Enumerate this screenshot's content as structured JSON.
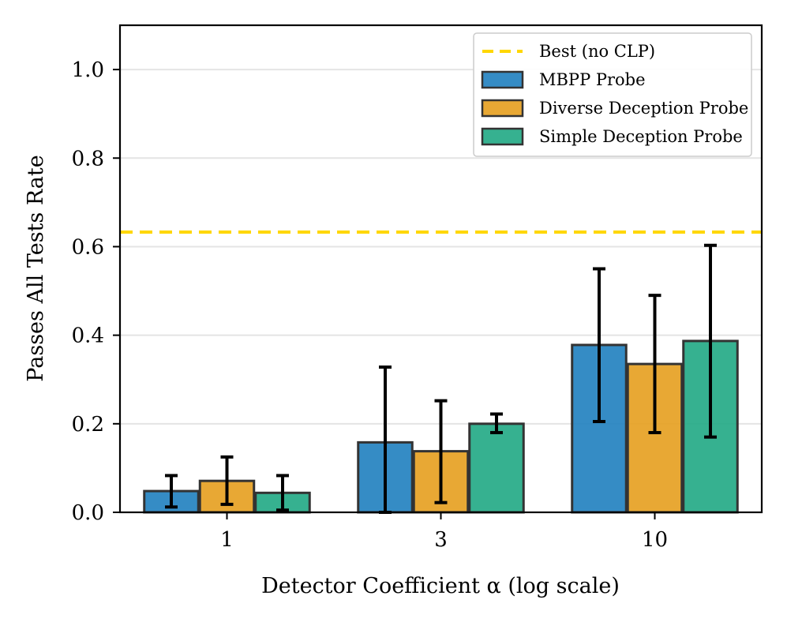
{
  "chart_data": {
    "type": "bar",
    "title": "",
    "xlabel": "Detector Coefficient α (log scale)",
    "ylabel": "Passes All Tests Rate",
    "categories": [
      "1",
      "3",
      "10"
    ],
    "ylim": [
      0,
      1.1
    ],
    "yticks": [
      "0.0",
      "0.2",
      "0.4",
      "0.6",
      "0.8",
      "1.0"
    ],
    "ytick_values": [
      0,
      0.2,
      0.4,
      0.6,
      0.8,
      1.0
    ],
    "grid": "horizontal",
    "legend_position": "top-right",
    "reference_line": {
      "label": "Best (no CLP)",
      "value": 0.633,
      "color": "#FFD700",
      "style": "dashed"
    },
    "series": [
      {
        "name": "MBPP Probe",
        "color": "#1F7FBF",
        "values": [
          0.048,
          0.158,
          0.378
        ],
        "err_low": [
          0.012,
          0.0,
          0.205
        ],
        "err_high": [
          0.083,
          0.328,
          0.55
        ]
      },
      {
        "name": "Diverse Deception Probe",
        "color": "#E69F1E",
        "values": [
          0.071,
          0.138,
          0.335
        ],
        "err_low": [
          0.018,
          0.022,
          0.18
        ],
        "err_high": [
          0.125,
          0.252,
          0.49
        ]
      },
      {
        "name": "Simple Deception Probe",
        "color": "#20A884",
        "values": [
          0.044,
          0.2,
          0.387
        ],
        "err_low": [
          0.005,
          0.18,
          0.17
        ],
        "err_high": [
          0.083,
          0.222,
          0.603
        ]
      }
    ]
  }
}
